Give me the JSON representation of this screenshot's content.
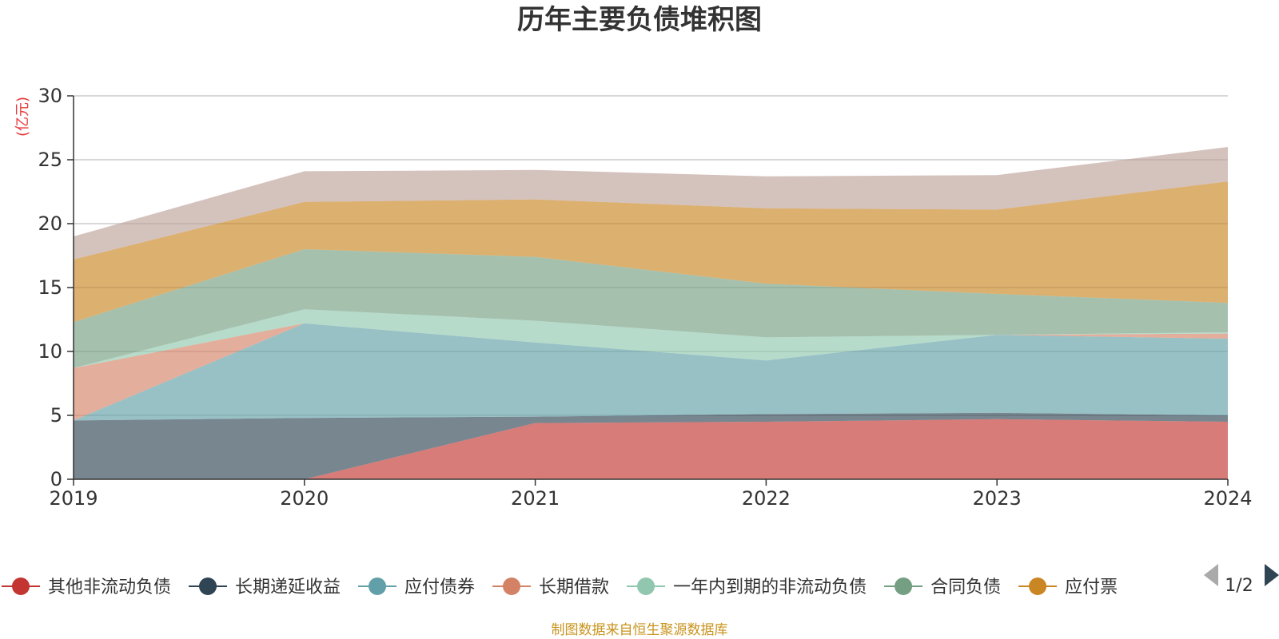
{
  "chart_data": {
    "type": "area",
    "stacked": true,
    "title": "历年主要负债堆积图",
    "unit": "(亿元)",
    "categories": [
      "2019",
      "2020",
      "2021",
      "2022",
      "2023",
      "2024"
    ],
    "ylim": [
      0,
      30
    ],
    "yticks": [
      "0",
      "5",
      "10",
      "15",
      "20",
      "25",
      "30"
    ],
    "grid": true,
    "series": [
      {
        "name": "其他非流动负债",
        "color": "#c23531",
        "values": [
          0,
          0,
          4.4,
          4.5,
          4.7,
          4.5
        ]
      },
      {
        "name": "长期递延收益",
        "color": "#2f4554",
        "values": [
          4.6,
          4.8,
          0.5,
          0.6,
          0.5,
          0.5
        ]
      },
      {
        "name": "应付债券",
        "color": "#61a0a8",
        "values": [
          0,
          7.4,
          5.8,
          4.2,
          6.1,
          6.0
        ]
      },
      {
        "name": "长期借款",
        "color": "#d48265",
        "values": [
          4.1,
          0,
          0,
          0,
          0,
          0.4
        ]
      },
      {
        "name": "一年内到期的非流动负债",
        "color": "#91c7ae",
        "values": [
          0,
          1.1,
          1.7,
          1.8,
          0,
          0.1
        ]
      },
      {
        "name": "合同负债",
        "color": "#749f83",
        "values": [
          3.6,
          4.7,
          5.0,
          4.2,
          3.2,
          2.3
        ]
      },
      {
        "name": "应付票",
        "color": "#ca8622",
        "values": [
          4.9,
          3.7,
          4.5,
          5.9,
          6.6,
          9.5
        ]
      },
      {
        "name": "",
        "color": "#bda29a",
        "values": [
          1.8,
          2.4,
          2.3,
          2.5,
          2.7,
          2.7
        ]
      }
    ],
    "legend": {
      "position": "bottom",
      "items": [
        "其他非流动负债",
        "长期递延收益",
        "应付债券",
        "长期借款",
        "一年内到期的非流动负债",
        "合同负债",
        "应付票"
      ],
      "page": "1/2"
    },
    "source": "制图数据来自恒生聚源数据库"
  }
}
